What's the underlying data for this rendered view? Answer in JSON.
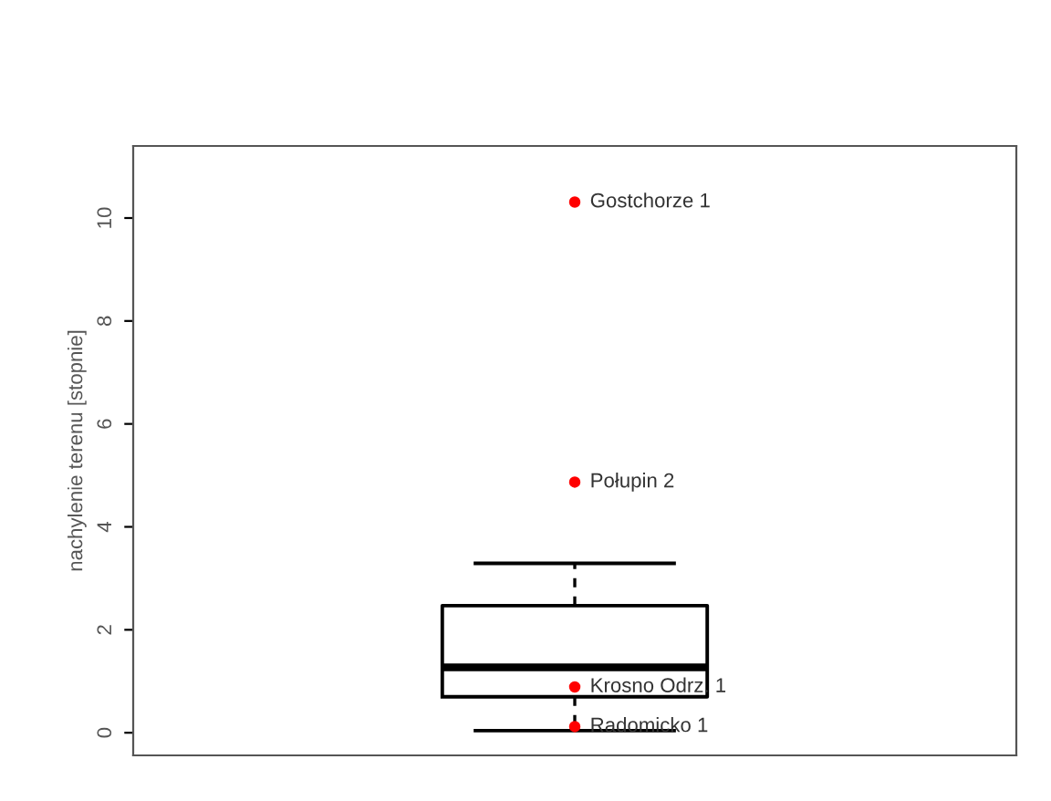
{
  "chart_data": {
    "type": "box",
    "ylabel": "nachylenie terenu [stopnie]",
    "categories": [
      null
    ],
    "boxes": [
      {
        "low": 0.04,
        "q1": 0.7,
        "median": 1.27,
        "q3": 2.47,
        "high": 3.29
      }
    ],
    "series": [
      {
        "type": "scatter",
        "color": "#ff0000",
        "x": [
          null,
          null,
          null,
          null
        ],
        "values": [
          10.31,
          4.87,
          0.89,
          0.12
        ],
        "value_labels": [
          "Gostchorze 1",
          "Połupin 2",
          "Krosno Odrz. 1",
          "Radomicko 1"
        ]
      }
    ],
    "ylim": [
      -0.44,
      11.4
    ],
    "yticks": [
      0,
      2,
      4,
      6,
      8,
      10
    ],
    "tick_labels": "y",
    "grid": false,
    "legend": false
  }
}
